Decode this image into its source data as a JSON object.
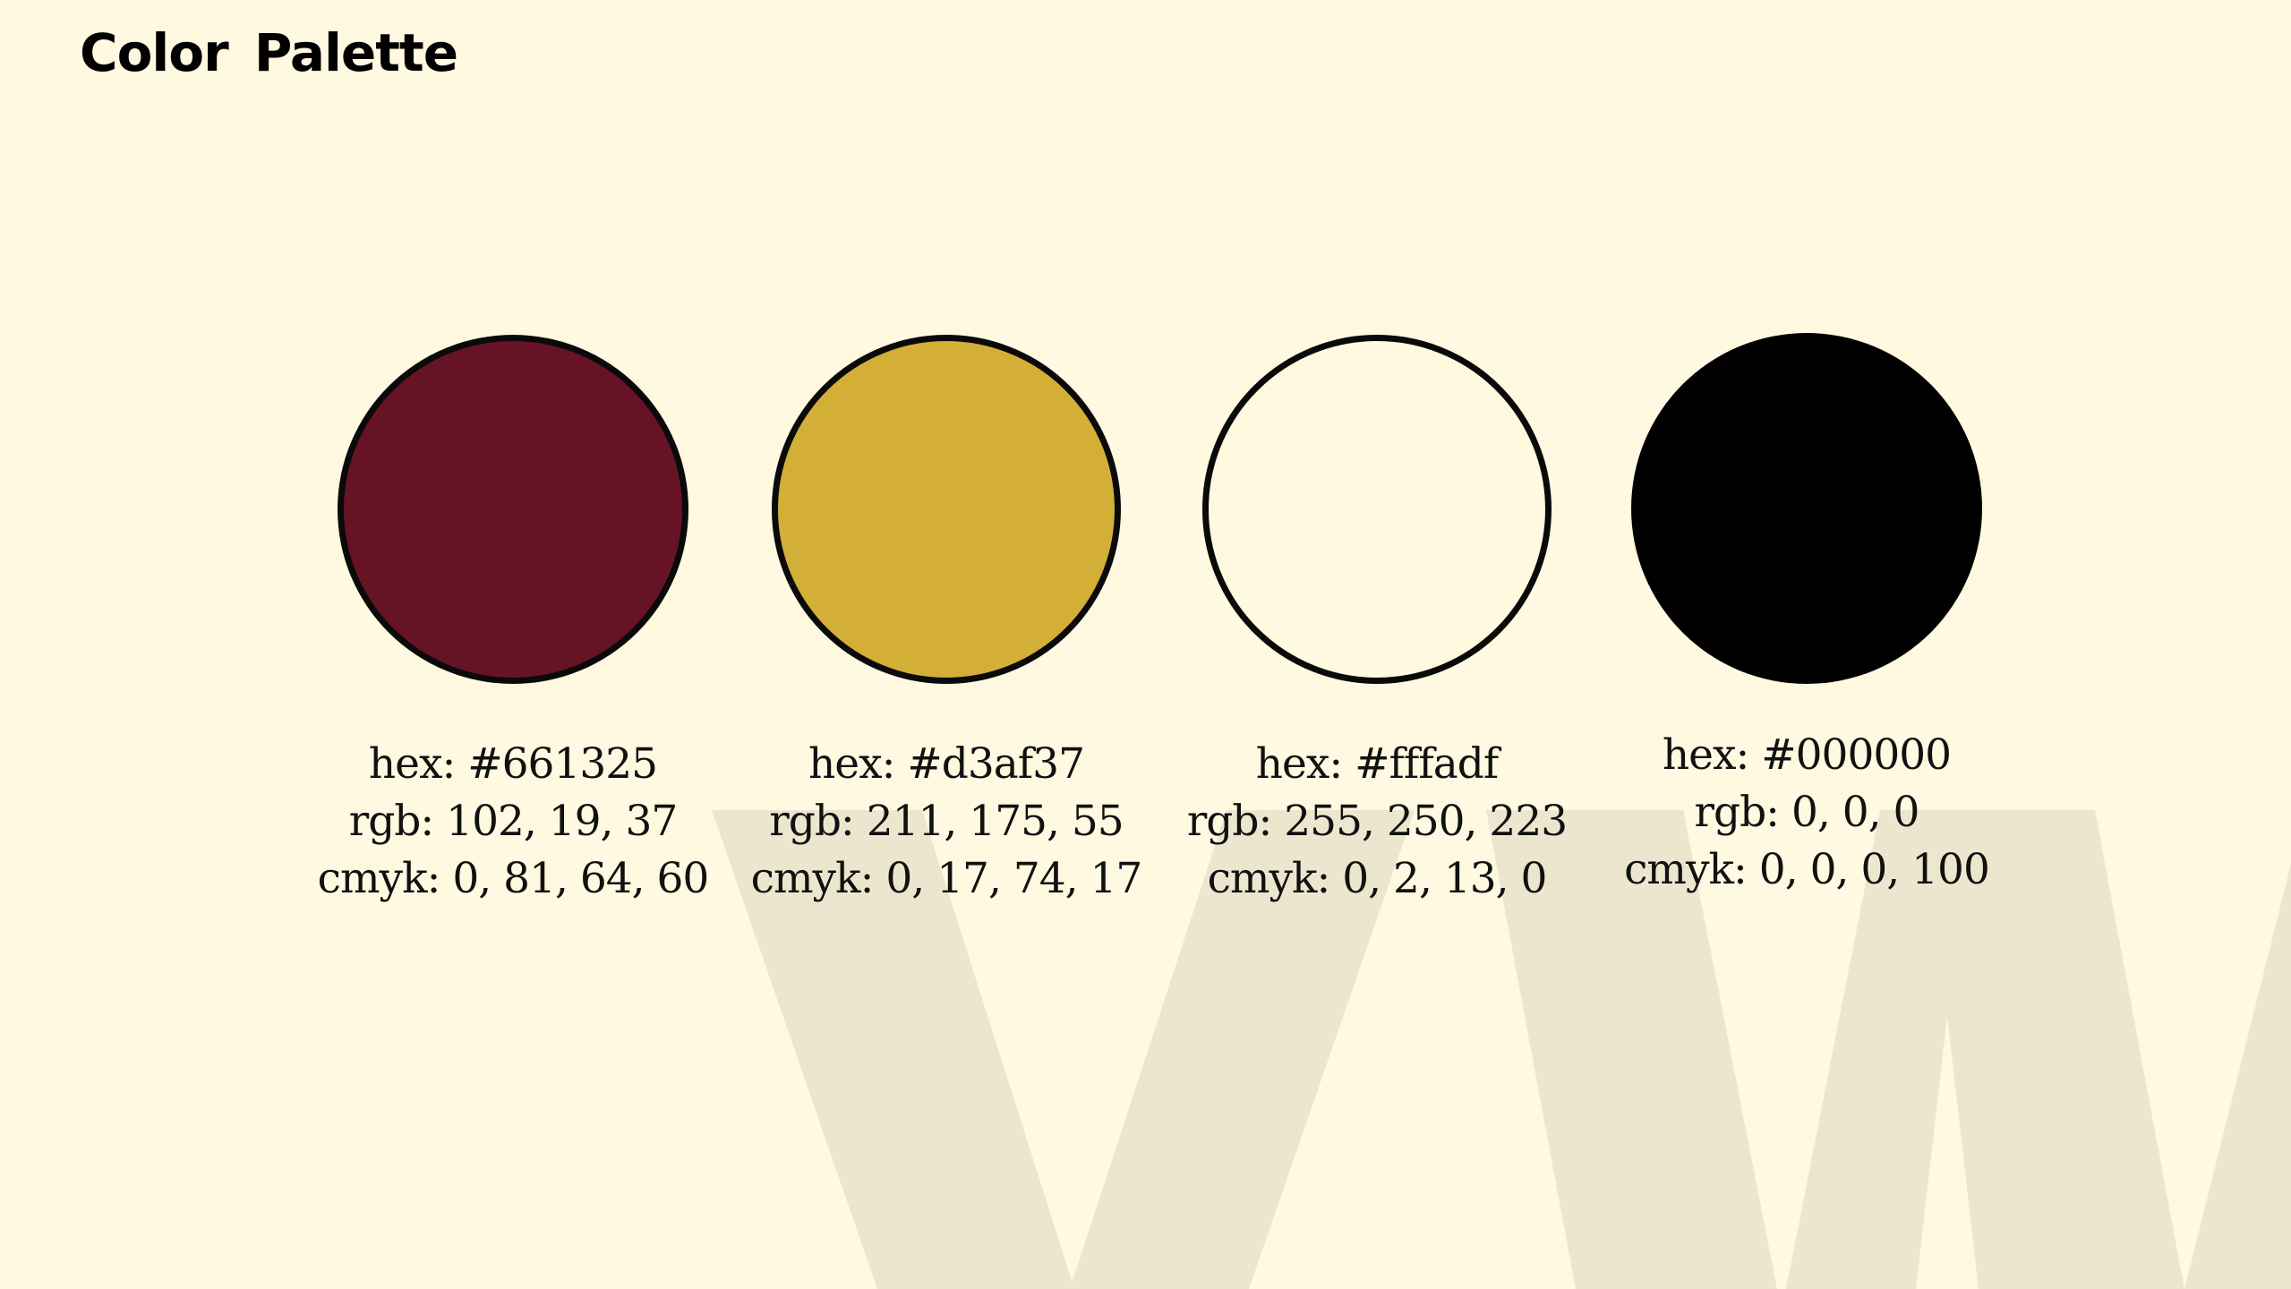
{
  "title": "Color Palette",
  "watermark": {
    "color": "#ede6cf"
  },
  "background": "#fff9e1",
  "swatches": [
    {
      "name": "maroon",
      "fill": "#661325",
      "border": "#0a0a0a",
      "hex": "hex: #661325",
      "rgb": "rgb: 102, 19, 37",
      "cmyk": "cmyk: 0, 81, 64, 60"
    },
    {
      "name": "gold",
      "fill": "#d3af37",
      "border": "#0a0a0a",
      "hex": "hex: #d3af37",
      "rgb": "rgb: 211, 175, 55",
      "cmyk": "cmyk: 0, 17, 74, 17"
    },
    {
      "name": "cream",
      "fill": "#fffadf",
      "border": "#0a0a0a",
      "hex": "hex: #fffadf",
      "rgb": "rgb: 255, 250, 223",
      "cmyk": "cmyk: 0, 2, 13, 0"
    },
    {
      "name": "black",
      "fill": "#000000",
      "border": "#000000",
      "hex": "hex: #000000",
      "rgb": "rgb: 0, 0, 0",
      "cmyk": "cmyk: 0, 0, 0, 100"
    }
  ]
}
